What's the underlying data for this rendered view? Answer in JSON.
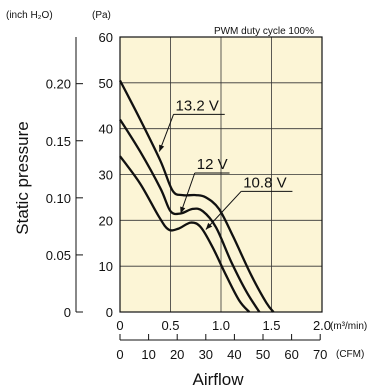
{
  "chart_data": {
    "type": "line",
    "annotation": "PWM duty cycle 100%",
    "ylabel": "Static pressure",
    "xlabel": "Airflow",
    "y_units": {
      "left": "(inch H₂O)",
      "right": "(Pa)"
    },
    "x_units": {
      "primary": "(m³/min)",
      "secondary": "(CFM)"
    },
    "xlim": [
      0,
      2.0
    ],
    "ylim": [
      0,
      60
    ],
    "x_ticks": [
      "0",
      "0.5",
      "1.0",
      "1.5",
      "2.0"
    ],
    "x_tick_values": [
      0,
      0.5,
      1.0,
      1.5,
      2.0
    ],
    "y_ticks_pa": [
      "0",
      "10",
      "20",
      "30",
      "40",
      "50",
      "60"
    ],
    "y_tick_values_pa": [
      0,
      10,
      20,
      30,
      40,
      50,
      60
    ],
    "y_ticks_inch": [
      "0",
      "0.05",
      "0.10",
      "0.15",
      "0.20"
    ],
    "y_tick_values_inch": [
      0,
      0.05,
      0.1,
      0.15,
      0.2
    ],
    "cfm_ticks": [
      "0",
      "10",
      "20",
      "30",
      "40",
      "50",
      "60",
      "70"
    ],
    "cfm_tick_values": [
      0,
      10,
      20,
      30,
      40,
      50,
      60,
      70
    ],
    "grid": true,
    "plot_background": "#fcf5d6",
    "line_color": "#111111",
    "series": [
      {
        "name": "13.2 V",
        "x": [
          0,
          0.2,
          0.4,
          0.52,
          0.62,
          0.75,
          0.85,
          0.98,
          1.12,
          1.3,
          1.45,
          1.52
        ],
        "y": [
          50.5,
          42.0,
          33.0,
          26.5,
          25.5,
          25.5,
          25.0,
          22.5,
          16.5,
          8.0,
          2.0,
          0.0
        ]
      },
      {
        "name": "12 V",
        "x": [
          0,
          0.2,
          0.4,
          0.5,
          0.6,
          0.72,
          0.82,
          0.95,
          1.1,
          1.25,
          1.38
        ],
        "y": [
          42.0,
          35.0,
          27.0,
          22.0,
          21.5,
          22.5,
          22.0,
          18.5,
          11.0,
          4.5,
          0.0
        ]
      },
      {
        "name": "10.8 V",
        "x": [
          0,
          0.2,
          0.38,
          0.48,
          0.58,
          0.7,
          0.8,
          0.92,
          1.05,
          1.18,
          1.28
        ],
        "y": [
          34.0,
          28.0,
          21.0,
          18.0,
          18.2,
          19.5,
          18.5,
          14.0,
          8.0,
          2.5,
          0.0
        ]
      }
    ],
    "series_labels": [
      {
        "text": "13.2 V",
        "x": 0.55,
        "y": 44,
        "target": [
          0.39,
          35.0
        ]
      },
      {
        "text": "12 V",
        "x": 0.76,
        "y": 31.2,
        "target": [
          0.6,
          21.5
        ]
      },
      {
        "text": "10.8 V",
        "x": 1.22,
        "y": 27.2,
        "target": [
          0.85,
          18.0
        ]
      }
    ]
  }
}
